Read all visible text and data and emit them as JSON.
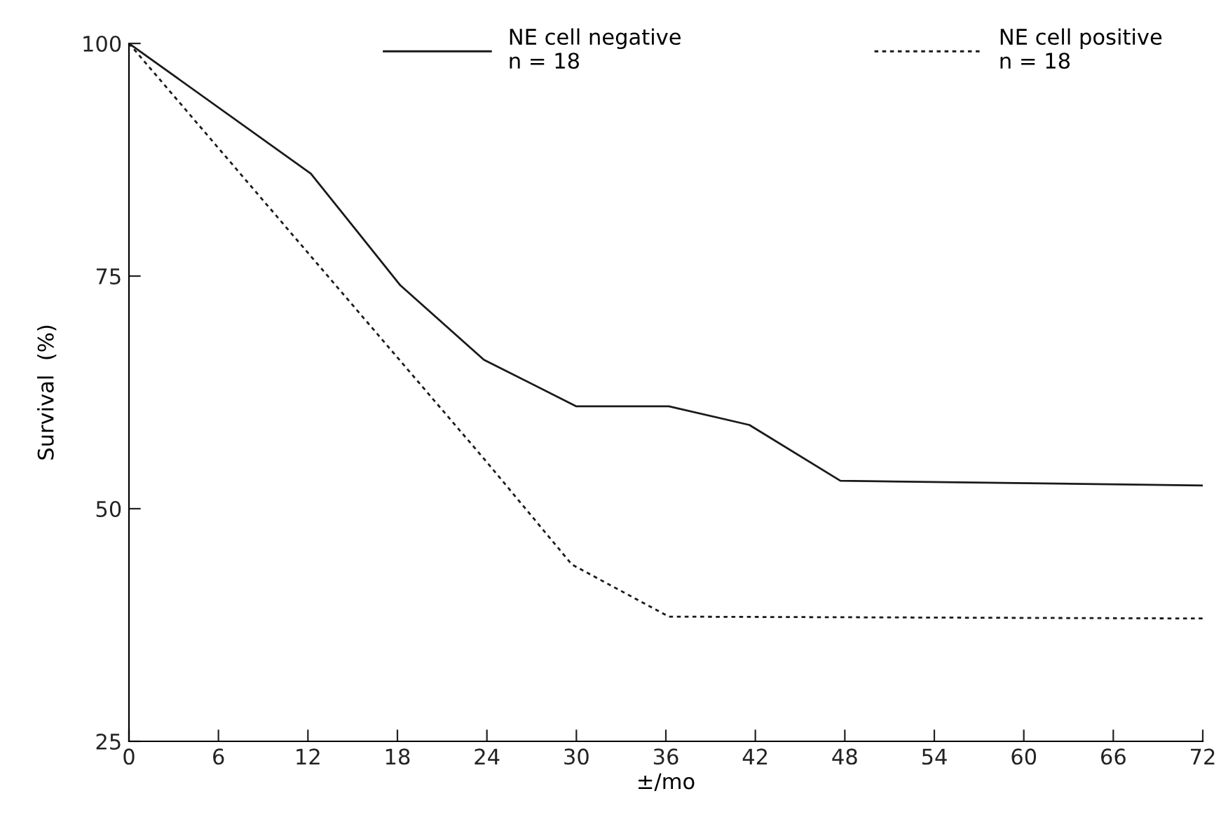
{
  "chart_data": {
    "type": "line",
    "xlabel": "±/mo",
    "ylabel": "Survival  (%)",
    "series": [
      {
        "name": "NE cell negative",
        "color": "#1a1a1a",
        "line_style": "solid",
        "x": [
          0,
          12.2,
          18.2,
          23.8,
          30,
          36.2,
          41.6,
          47.7,
          72
        ],
        "values": [
          100,
          86,
          74,
          66,
          61,
          61,
          59,
          53,
          52.5
        ]
      },
      {
        "name": "NE cell positive",
        "color": "#1a1a1a",
        "line_style": "dotted",
        "x": [
          0,
          24,
          29.7,
          36.2,
          72
        ],
        "values": [
          100,
          55,
          44,
          38.4,
          38.2
        ]
      }
    ],
    "annotations": [
      "n = 18",
      "n = 18"
    ],
    "xlim": [
      0,
      72
    ],
    "xticks": [
      0,
      6,
      12,
      18,
      24,
      30,
      36,
      42,
      48,
      54,
      60,
      66,
      72
    ],
    "ylim": [
      25,
      100
    ],
    "yticks": [
      25,
      50,
      75,
      100
    ],
    "grid": false,
    "legend": "top",
    "marker": "none"
  }
}
